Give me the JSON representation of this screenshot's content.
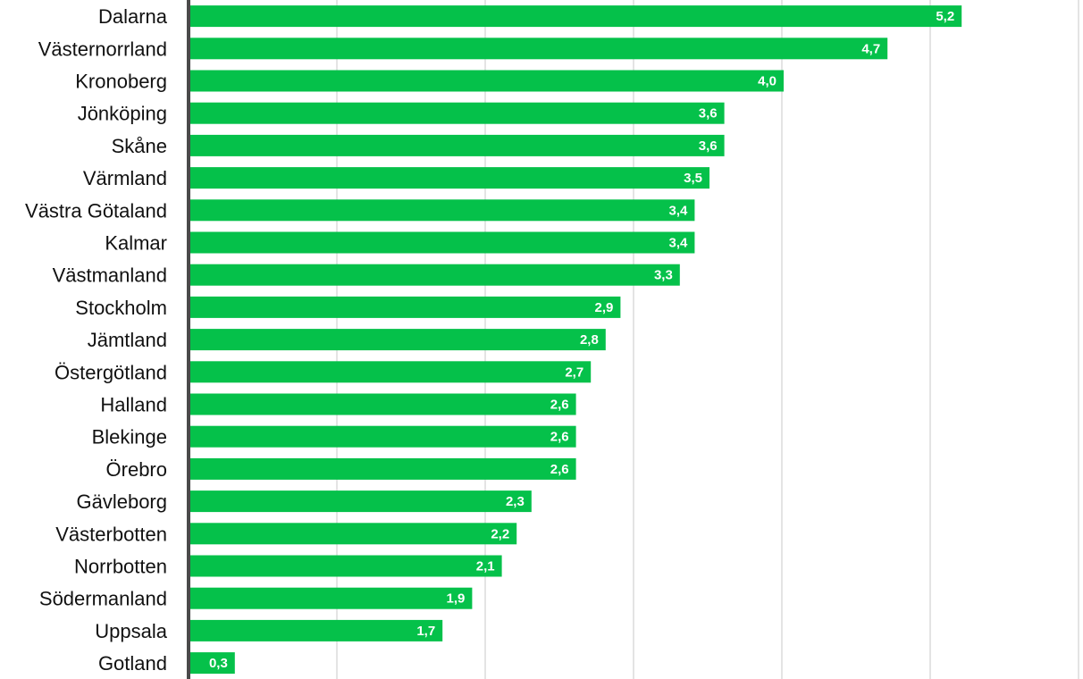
{
  "chart_data": {
    "type": "bar",
    "orientation": "horizontal",
    "categories": [
      "Dalarna",
      "Västernorrland",
      "Kronoberg",
      "Jönköping",
      "Skåne",
      "Värmland",
      "Västra Götaland",
      "Kalmar",
      "Västmanland",
      "Stockholm",
      "Jämtland",
      "Östergötland",
      "Halland",
      "Blekinge",
      "Örebro",
      "Gävleborg",
      "Västerbotten",
      "Norrbotten",
      "Södermanland",
      "Uppsala",
      "Gotland"
    ],
    "values": [
      5.2,
      4.7,
      4.0,
      3.6,
      3.6,
      3.5,
      3.4,
      3.4,
      3.3,
      2.9,
      2.8,
      2.7,
      2.6,
      2.6,
      2.6,
      2.3,
      2.2,
      2.1,
      1.9,
      1.7,
      0.3
    ],
    "value_labels": [
      "5,2",
      "4,7",
      "4,0",
      "3,6",
      "3,6",
      "3,5",
      "3,4",
      "3,4",
      "3,3",
      "2,9",
      "2,8",
      "2,7",
      "2,6",
      "2,6",
      "2,6",
      "2,3",
      "2,2",
      "2,1",
      "1,9",
      "1,7",
      "0,3"
    ],
    "xlim": [
      0,
      6
    ],
    "grid": true,
    "colors": {
      "bar": "#05c14a",
      "axis": "#4a4a4a",
      "grid": "#c8c8c8",
      "label": "#111111",
      "value_label": "#ffffff"
    }
  }
}
